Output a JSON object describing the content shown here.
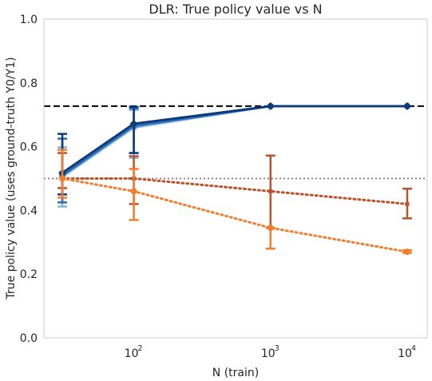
{
  "chart_data": {
    "type": "line",
    "title": "DLR: True policy value vs N",
    "xlabel": "N (train)",
    "ylabel": "True policy value (uses ground-truth Y0/Y1)",
    "xscale": "log",
    "xlim": [
      22,
      14000
    ],
    "ylim": [
      0.0,
      1.0
    ],
    "grid": false,
    "legend": "none",
    "xticks": [
      {
        "value": 100,
        "base": "10",
        "exp": "2"
      },
      {
        "value": 1000,
        "base": "10",
        "exp": "3"
      },
      {
        "value": 10000,
        "base": "10",
        "exp": "4"
      }
    ],
    "yticks": [
      {
        "value": 0.0,
        "label": "0.0"
      },
      {
        "value": 0.2,
        "label": "0.2"
      },
      {
        "value": 0.4,
        "label": "0.4"
      },
      {
        "value": 0.6,
        "label": "0.6"
      },
      {
        "value": 0.8,
        "label": "0.8"
      },
      {
        "value": 1.0,
        "label": "1.0"
      }
    ],
    "reference_lines": [
      {
        "y": 0.727,
        "color": "#000000",
        "style": "dashed"
      },
      {
        "y": 0.5,
        "color": "#8c7070",
        "style": "dotted"
      }
    ],
    "series": [
      {
        "color": "#84b5e3",
        "style": "solid",
        "marker": "circle",
        "x": [
          30,
          100,
          1000,
          10000
        ],
        "y": [
          0.505,
          0.66,
          0.727,
          0.727
        ],
        "err_low": [
          0.412,
          0.565,
          null,
          null
        ],
        "err_high": [
          0.598,
          0.715,
          null,
          null
        ]
      },
      {
        "color": "#2a6cb0",
        "style": "solid",
        "marker": "circle",
        "x": [
          30,
          100,
          1000,
          10000
        ],
        "y": [
          0.51,
          0.665,
          0.727,
          0.727
        ],
        "err_low": [
          0.425,
          0.58,
          null,
          null
        ],
        "err_high": [
          0.625,
          0.72,
          null,
          null
        ]
      },
      {
        "color": "#0d3a78",
        "style": "solid",
        "marker": "diamond",
        "x": [
          30,
          100,
          1000,
          10000
        ],
        "y": [
          0.518,
          0.672,
          0.727,
          0.727
        ],
        "err_low": [
          0.45,
          0.58,
          null,
          null
        ],
        "err_high": [
          0.64,
          0.725,
          null,
          null
        ]
      },
      {
        "color": "#b9532b",
        "style": "dotted",
        "marker": "plus",
        "x": [
          30,
          100,
          1000,
          10000
        ],
        "y": [
          0.5,
          0.5,
          0.46,
          0.42
        ],
        "err_low": [
          0.47,
          0.42,
          0.345,
          0.375
        ],
        "err_high": [
          0.58,
          0.57,
          0.572,
          0.468
        ]
      },
      {
        "color": "#f07e2e",
        "style": "dotted",
        "marker": "circle",
        "x": [
          30,
          100,
          1000,
          10000
        ],
        "y": [
          0.5,
          0.46,
          0.345,
          0.27
        ],
        "err_low": [
          0.44,
          0.37,
          0.28,
          0.267
        ],
        "err_high": [
          0.59,
          0.53,
          0.345,
          0.275
        ]
      }
    ]
  }
}
